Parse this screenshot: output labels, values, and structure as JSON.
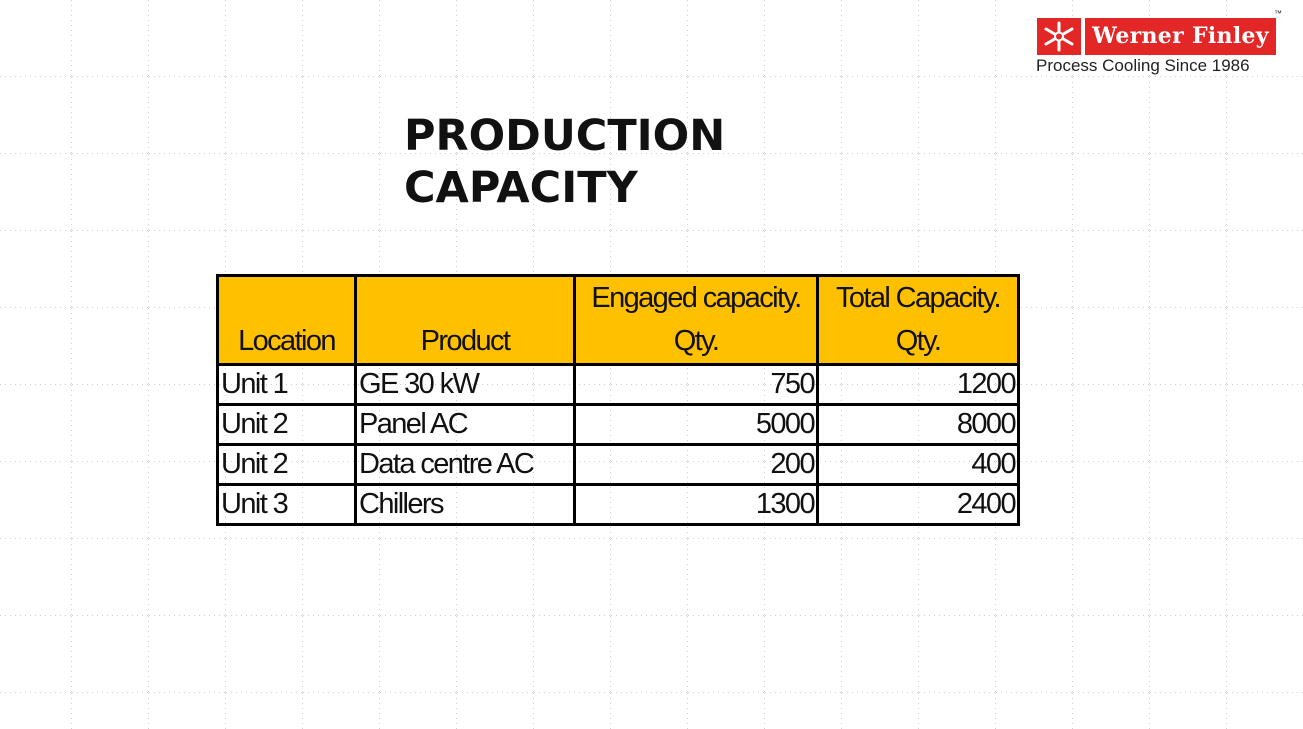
{
  "logo": {
    "brand": "Werner Finley",
    "trademark": "™",
    "tagline": "Process Cooling Since 1986"
  },
  "title": "PRODUCTION CAPACITY",
  "table": {
    "columns": [
      "Location",
      "Product",
      "Engaged capacity. Qty.",
      "Total Capacity. Qty."
    ],
    "rows": [
      [
        "Unit 1",
        "GE 30 kW",
        750,
        1200
      ],
      [
        "Unit 2",
        "Panel AC",
        5000,
        8000
      ],
      [
        "Unit 2",
        "Data centre AC",
        200,
        400
      ],
      [
        "Unit 3",
        "Chillers",
        1300,
        2400
      ]
    ]
  }
}
